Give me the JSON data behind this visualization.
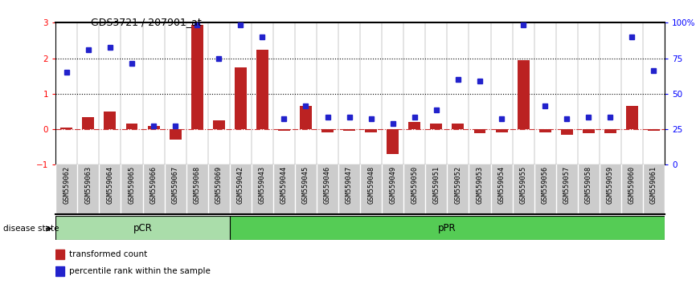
{
  "title": "GDS3721 / 207901_at",
  "categories": [
    "GSM559062",
    "GSM559063",
    "GSM559064",
    "GSM559065",
    "GSM559066",
    "GSM559067",
    "GSM559068",
    "GSM559069",
    "GSM559042",
    "GSM559043",
    "GSM559044",
    "GSM559045",
    "GSM559046",
    "GSM559047",
    "GSM559048",
    "GSM559049",
    "GSM559050",
    "GSM559051",
    "GSM559052",
    "GSM559053",
    "GSM559054",
    "GSM559055",
    "GSM559056",
    "GSM559057",
    "GSM559058",
    "GSM559059",
    "GSM559060",
    "GSM559061"
  ],
  "transformed_count": [
    0.05,
    0.35,
    0.5,
    0.15,
    0.1,
    -0.3,
    2.95,
    0.25,
    1.75,
    2.25,
    -0.05,
    0.65,
    -0.08,
    -0.05,
    -0.1,
    -0.7,
    0.2,
    0.15,
    0.15,
    -0.12,
    -0.1,
    1.95,
    -0.1,
    -0.15,
    -0.12,
    -0.12,
    0.65,
    -0.05
  ],
  "percentile_rank": [
    1.6,
    2.25,
    2.3,
    1.85,
    0.1,
    0.1,
    2.95,
    2.0,
    2.95,
    2.6,
    0.3,
    0.65,
    0.35,
    0.35,
    0.3,
    0.15,
    0.35,
    0.55,
    1.4,
    1.35,
    0.3,
    2.95,
    0.65,
    0.3,
    0.35,
    0.35,
    2.6,
    1.65
  ],
  "pcr_count": 8,
  "ppr_count": 20,
  "bar_color": "#bb2222",
  "dot_color": "#2222cc",
  "ylim_left": [
    -1,
    3
  ],
  "ylim_right": [
    0,
    100
  ],
  "zero_line_color": "#cc3333",
  "background_color": "#ffffff",
  "pcr_color": "#aaddaa",
  "ppr_color": "#55cc55",
  "label_bar": "transformed count",
  "label_dot": "percentile rank within the sample",
  "tick_bg_color": "#cccccc"
}
